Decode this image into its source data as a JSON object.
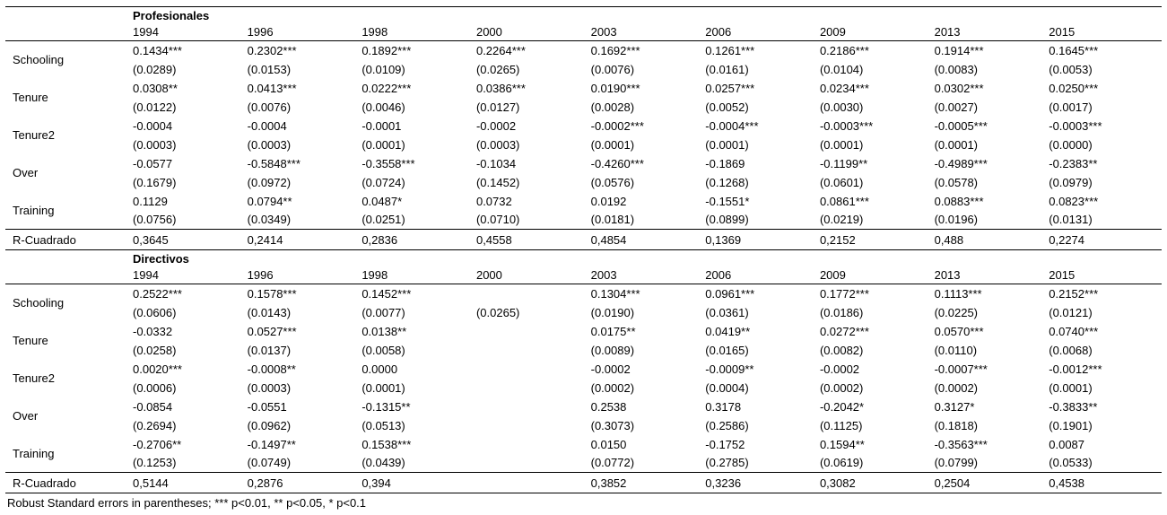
{
  "footnote": "Robust Standard errors in parentheses; *** p<0.01, ** p<0.05, * p<0.1",
  "panels": [
    {
      "title": "Profesionales",
      "years": [
        "1994",
        "1996",
        "1998",
        "2000",
        "2003",
        "2006",
        "2009",
        "2013",
        "2015"
      ],
      "variables": [
        {
          "label": "Schooling",
          "coefs": [
            "0.1434***",
            "0.2302***",
            "0.1892***",
            "0.2264***",
            "0.1692***",
            "0.1261***",
            "0.2186***",
            "0.1914***",
            "0.1645***"
          ],
          "ses": [
            "(0.0289)",
            "(0.0153)",
            "(0.0109)",
            "(0.0265)",
            "(0.0076)",
            "(0.0161)",
            "(0.0104)",
            "(0.0083)",
            "(0.0053)"
          ]
        },
        {
          "label": "Tenure",
          "coefs": [
            "0.0308**",
            "0.0413***",
            "0.0222***",
            "0.0386***",
            "0.0190***",
            "0.0257***",
            "0.0234***",
            "0.0302***",
            "0.0250***"
          ],
          "ses": [
            "(0.0122)",
            "(0.0076)",
            "(0.0046)",
            "(0.0127)",
            "(0.0028)",
            "(0.0052)",
            "(0.0030)",
            "(0.0027)",
            "(0.0017)"
          ]
        },
        {
          "label": "Tenure2",
          "coefs": [
            "-0.0004",
            "-0.0004",
            "-0.0001",
            "-0.0002",
            "-0.0002***",
            "-0.0004***",
            "-0.0003***",
            "-0.0005***",
            "-0.0003***"
          ],
          "ses": [
            "(0.0003)",
            "(0.0003)",
            "(0.0001)",
            "(0.0003)",
            "(0.0001)",
            "(0.0001)",
            "(0.0001)",
            "(0.0001)",
            "(0.0000)"
          ]
        },
        {
          "label": "Over",
          "coefs": [
            "-0.0577",
            "-0.5848***",
            "-0.3558***",
            "-0.1034",
            "-0.4260***",
            "-0.1869",
            "-0.1199**",
            "-0.4989***",
            "-0.2383**"
          ],
          "ses": [
            "(0.1679)",
            "(0.0972)",
            "(0.0724)",
            "(0.1452)",
            "(0.0576)",
            "(0.1268)",
            "(0.0601)",
            "(0.0578)",
            "(0.0979)"
          ]
        },
        {
          "label": "Training",
          "coefs": [
            "0.1129",
            "0.0794**",
            "0.0487*",
            "0.0732",
            "0.0192",
            "-0.1551*",
            "0.0861***",
            "0.0883***",
            "0.0823***"
          ],
          "ses": [
            "(0.0756)",
            "(0.0349)",
            "(0.0251)",
            "(0.0710)",
            "(0.0181)",
            "(0.0899)",
            "(0.0219)",
            "(0.0196)",
            "(0.0131)"
          ]
        }
      ],
      "r2_label": "R-Cuadrado",
      "r2_values": [
        "0,3645",
        "0,2414",
        "0,2836",
        "0,4558",
        "0,4854",
        "0,1369",
        "0,2152",
        "0,488",
        "0,2274"
      ]
    },
    {
      "title": "Directivos",
      "years": [
        "1994",
        "1996",
        "1998",
        "2000",
        "2003",
        "2006",
        "2009",
        "2013",
        "2015"
      ],
      "variables": [
        {
          "label": "Schooling",
          "coefs": [
            "0.2522***",
            "0.1578***",
            "0.1452***",
            "",
            "0.1304***",
            "0.0961***",
            "0.1772***",
            "0.1113***",
            "0.2152***"
          ],
          "ses": [
            "(0.0606)",
            "(0.0143)",
            "(0.0077)",
            "(0.0265)",
            "(0.0190)",
            "(0.0361)",
            "(0.0186)",
            "(0.0225)",
            "(0.0121)"
          ]
        },
        {
          "label": "Tenure",
          "coefs": [
            "-0.0332",
            "0.0527***",
            "0.0138**",
            "",
            "0.0175**",
            "0.0419**",
            "0.0272***",
            "0.0570***",
            "0.0740***"
          ],
          "ses": [
            "(0.0258)",
            "(0.0137)",
            "(0.0058)",
            "",
            "(0.0089)",
            "(0.0165)",
            "(0.0082)",
            "(0.0110)",
            "(0.0068)"
          ]
        },
        {
          "label": "Tenure2",
          "coefs": [
            "0.0020***",
            "-0.0008**",
            "0.0000",
            "",
            "-0.0002",
            "-0.0009**",
            "-0.0002",
            "-0.0007***",
            "-0.0012***"
          ],
          "ses": [
            "(0.0006)",
            "(0.0003)",
            "(0.0001)",
            "",
            "(0.0002)",
            "(0.0004)",
            "(0.0002)",
            "(0.0002)",
            "(0.0001)"
          ]
        },
        {
          "label": "Over",
          "coefs": [
            "-0.0854",
            "-0.0551",
            "-0.1315**",
            "",
            "0.2538",
            "0.3178",
            "-0.2042*",
            "0.3127*",
            "-0.3833**"
          ],
          "ses": [
            "(0.2694)",
            "(0.0962)",
            "(0.0513)",
            "",
            "(0.3073)",
            "(0.2586)",
            "(0.1125)",
            "(0.1818)",
            "(0.1901)"
          ]
        },
        {
          "label": "Training",
          "coefs": [
            "-0.2706**",
            "-0.1497**",
            "0.1538***",
            "",
            "0.0150",
            "-0.1752",
            "0.1594**",
            "-0.3563***",
            "0.0087"
          ],
          "ses": [
            "(0.1253)",
            "(0.0749)",
            "(0.0439)",
            "",
            "(0.0772)",
            "(0.2785)",
            "(0.0619)",
            "(0.0799)",
            "(0.0533)"
          ]
        }
      ],
      "r2_label": "R-Cuadrado",
      "r2_values": [
        "0,5144",
        "0,2876",
        "0,394",
        "",
        "0,3852",
        "0,3236",
        "0,3082",
        "0,2504",
        "0,4538"
      ]
    }
  ]
}
